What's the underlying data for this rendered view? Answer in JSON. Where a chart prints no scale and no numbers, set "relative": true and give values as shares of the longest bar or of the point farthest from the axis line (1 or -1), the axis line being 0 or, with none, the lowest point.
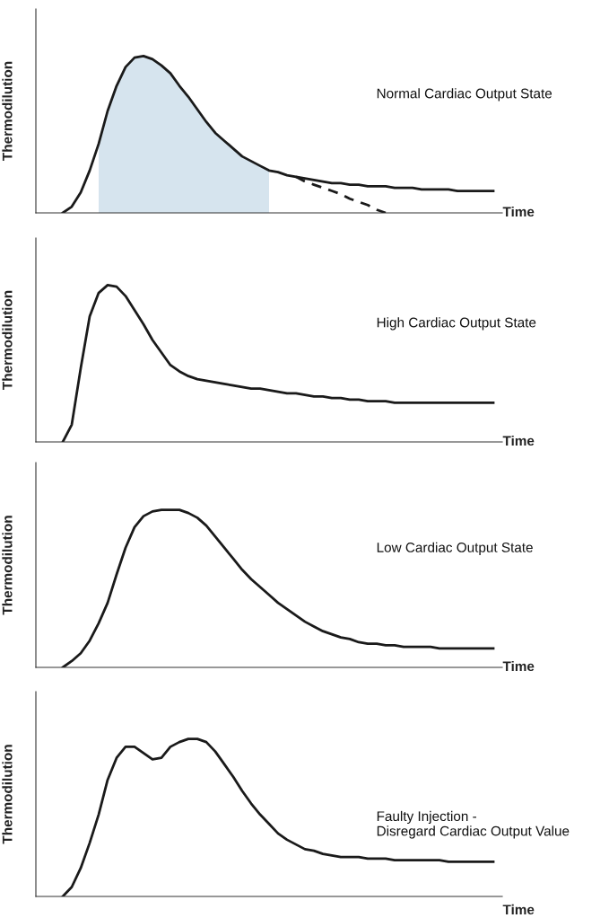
{
  "chart_data": [
    {
      "type": "line",
      "relative": true,
      "ylabel": "Thermodilution",
      "xlabel": "Time",
      "annotations": [
        "Normal Cardiac Output State"
      ],
      "categories": [
        null,
        null,
        null,
        null,
        null,
        null,
        null,
        null,
        null,
        null,
        null,
        null,
        null,
        null,
        null,
        null,
        null,
        null,
        null,
        null,
        null,
        null,
        null,
        null,
        null,
        null,
        null,
        null,
        null,
        null,
        null,
        null,
        null,
        null,
        null,
        null,
        null,
        null,
        null,
        null,
        null,
        null,
        null,
        null,
        null,
        null,
        null,
        null,
        null,
        null,
        null,
        null,
        null
      ],
      "series": [
        {
          "type": "area",
          "color": "#d6e4ee",
          "values": [
            null,
            null,
            null,
            null,
            null,
            null,
            null,
            0.44,
            0.65,
            0.81,
            0.93,
            0.99,
            1,
            0.98,
            0.94,
            0.89,
            0.81,
            0.74,
            0.66,
            0.58,
            0.51,
            0.46,
            0.41,
            0.36,
            0.33,
            0.3,
            0.27,
            null,
            null,
            null,
            null,
            null,
            null,
            null,
            null,
            null,
            null,
            null,
            null,
            null,
            null,
            null,
            null,
            null,
            null,
            null,
            null,
            null,
            null,
            null,
            null,
            null,
            null
          ]
        },
        {
          "color": "#1a1a1a",
          "line_style": "solid",
          "values": [
            null,
            null,
            null,
            0,
            0.04,
            0.13,
            0.27,
            0.44,
            0.65,
            0.81,
            0.93,
            0.99,
            1,
            0.98,
            0.94,
            0.89,
            0.81,
            0.74,
            0.66,
            0.58,
            0.51,
            0.46,
            0.41,
            0.36,
            0.33,
            0.3,
            0.27,
            0.26,
            0.24,
            0.23,
            0.22,
            0.21,
            0.2,
            0.19,
            0.19,
            0.18,
            0.18,
            0.17,
            0.17,
            0.17,
            0.16,
            0.16,
            0.16,
            0.15,
            0.15,
            0.15,
            0.15,
            0.14,
            0.14,
            0.14,
            0.14,
            0.14,
            null
          ]
        },
        {
          "color": "#1a1a1a",
          "line_style": "dashed",
          "values": [
            null,
            null,
            null,
            null,
            null,
            null,
            null,
            null,
            null,
            null,
            null,
            null,
            null,
            null,
            null,
            null,
            null,
            null,
            null,
            null,
            null,
            null,
            null,
            null,
            null,
            null,
            null,
            null,
            null,
            0.23,
            0.2,
            0.18,
            0.16,
            0.14,
            0.12,
            0.09,
            0.07,
            0.05,
            0.02,
            0,
            null,
            null,
            null,
            null,
            null,
            null,
            null,
            null,
            null,
            null,
            null,
            null,
            null
          ]
        }
      ]
    },
    {
      "type": "line",
      "relative": true,
      "ylabel": "Thermodilution",
      "xlabel": "Time",
      "annotations": [
        "High Cardiac Output State"
      ],
      "categories": [
        null,
        null,
        null,
        null,
        null,
        null,
        null,
        null,
        null,
        null,
        null,
        null,
        null,
        null,
        null,
        null,
        null,
        null,
        null,
        null,
        null,
        null,
        null,
        null,
        null,
        null,
        null,
        null,
        null,
        null,
        null,
        null,
        null,
        null,
        null,
        null,
        null,
        null,
        null,
        null,
        null,
        null,
        null,
        null,
        null,
        null,
        null,
        null,
        null,
        null,
        null,
        null,
        null
      ],
      "series": [
        {
          "color": "#1a1a1a",
          "line_style": "solid",
          "values": [
            null,
            null,
            null,
            0,
            0.11,
            0.47,
            0.8,
            0.95,
            1,
            0.99,
            0.93,
            0.84,
            0.75,
            0.65,
            0.57,
            0.49,
            0.45,
            0.42,
            0.4,
            0.39,
            0.38,
            0.37,
            0.36,
            0.35,
            0.34,
            0.34,
            0.33,
            0.32,
            0.31,
            0.31,
            0.3,
            0.29,
            0.29,
            0.28,
            0.28,
            0.27,
            0.27,
            0.26,
            0.26,
            0.26,
            0.25,
            0.25,
            0.25,
            0.25,
            0.25,
            0.25,
            0.25,
            0.25,
            0.25,
            0.25,
            0.25,
            0.25,
            null
          ]
        }
      ]
    },
    {
      "type": "line",
      "relative": true,
      "ylabel": "Thermodilution",
      "xlabel": "Time",
      "annotations": [
        "Low Cardiac Output State"
      ],
      "categories": [
        null,
        null,
        null,
        null,
        null,
        null,
        null,
        null,
        null,
        null,
        null,
        null,
        null,
        null,
        null,
        null,
        null,
        null,
        null,
        null,
        null,
        null,
        null,
        null,
        null,
        null,
        null,
        null,
        null,
        null,
        null,
        null,
        null,
        null,
        null,
        null,
        null,
        null,
        null,
        null,
        null,
        null,
        null,
        null,
        null,
        null,
        null,
        null,
        null,
        null,
        null,
        null,
        null
      ],
      "series": [
        {
          "color": "#1a1a1a",
          "line_style": "solid",
          "values": [
            null,
            null,
            null,
            0,
            0.04,
            0.09,
            0.17,
            0.28,
            0.41,
            0.59,
            0.76,
            0.89,
            0.96,
            0.99,
            1,
            1,
            1,
            0.98,
            0.95,
            0.9,
            0.83,
            0.76,
            0.69,
            0.62,
            0.56,
            0.51,
            0.46,
            0.41,
            0.37,
            0.33,
            0.29,
            0.26,
            0.23,
            0.21,
            0.19,
            0.18,
            0.16,
            0.15,
            0.15,
            0.14,
            0.14,
            0.13,
            0.13,
            0.13,
            0.13,
            0.12,
            0.12,
            0.12,
            0.12,
            0.12,
            0.12,
            0.12,
            null
          ]
        }
      ]
    },
    {
      "type": "line",
      "relative": true,
      "ylabel": "Thermodilution",
      "xlabel": "Time",
      "annotations": [
        "Faulty Injection -\nDisregard Cardiac Output Value"
      ],
      "categories": [
        null,
        null,
        null,
        null,
        null,
        null,
        null,
        null,
        null,
        null,
        null,
        null,
        null,
        null,
        null,
        null,
        null,
        null,
        null,
        null,
        null,
        null,
        null,
        null,
        null,
        null,
        null,
        null,
        null,
        null,
        null,
        null,
        null,
        null,
        null,
        null,
        null,
        null,
        null,
        null,
        null,
        null,
        null,
        null,
        null,
        null,
        null,
        null,
        null,
        null,
        null,
        null,
        null
      ],
      "series": [
        {
          "color": "#1a1a1a",
          "line_style": "solid",
          "values": [
            null,
            null,
            null,
            0,
            0.06,
            0.18,
            0.34,
            0.52,
            0.74,
            0.88,
            0.95,
            0.95,
            0.91,
            0.87,
            0.88,
            0.95,
            0.98,
            1,
            1,
            0.98,
            0.92,
            0.84,
            0.76,
            0.67,
            0.59,
            0.52,
            0.46,
            0.4,
            0.36,
            0.33,
            0.3,
            0.29,
            0.27,
            0.26,
            0.25,
            0.25,
            0.25,
            0.24,
            0.24,
            0.24,
            0.23,
            0.23,
            0.23,
            0.23,
            0.23,
            0.23,
            0.22,
            0.22,
            0.22,
            0.22,
            0.22,
            0.22,
            null
          ]
        }
      ]
    }
  ]
}
